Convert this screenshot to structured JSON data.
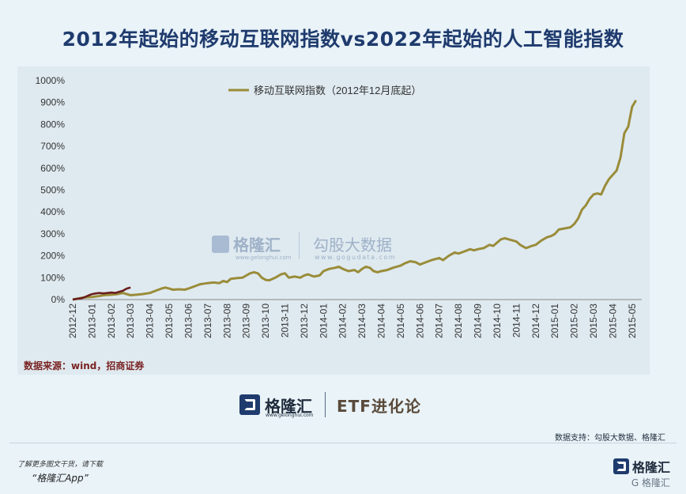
{
  "chart_data": {
    "type": "line",
    "title": "2012年起始的移动互联网指数vs2022年起始的人工智能指数",
    "legend_location": "top",
    "ylim": [
      0,
      1000
    ],
    "y_ticks": [
      "0%",
      "100%",
      "200%",
      "300%",
      "400%",
      "500%",
      "600%",
      "700%",
      "800%",
      "900%",
      "1000%"
    ],
    "x_ticks": [
      "2012-12",
      "2013-01",
      "2013-02",
      "2013-03",
      "2013-04",
      "2013-05",
      "2013-06",
      "2013-07",
      "2013-08",
      "2013-09",
      "2013-10",
      "2013-11",
      "2013-12",
      "2014-01",
      "2014-02",
      "2014-03",
      "2014-04",
      "2014-05",
      "2014-06",
      "2014-07",
      "2014-08",
      "2014-09",
      "2014-10",
      "2014-11",
      "2014-12",
      "2015-01",
      "2015-02",
      "2015-03",
      "2015-04",
      "2015-05"
    ],
    "grid": false,
    "series": [
      {
        "name": "移动互联网指数（2012年12月底起）",
        "color": "#9a8c3a",
        "points": [
          [
            0,
            0
          ],
          [
            0.3,
            5
          ],
          [
            0.6,
            10
          ],
          [
            1,
            12
          ],
          [
            1.3,
            15
          ],
          [
            1.6,
            20
          ],
          [
            2,
            22
          ],
          [
            2.3,
            25
          ],
          [
            2.6,
            30
          ],
          [
            3,
            20
          ],
          [
            3.3,
            22
          ],
          [
            3.6,
            25
          ],
          [
            4,
            30
          ],
          [
            4.3,
            40
          ],
          [
            4.6,
            50
          ],
          [
            4.8,
            55
          ],
          [
            5,
            50
          ],
          [
            5.2,
            45
          ],
          [
            5.5,
            47
          ],
          [
            5.8,
            45
          ],
          [
            6,
            50
          ],
          [
            6.3,
            60
          ],
          [
            6.6,
            70
          ],
          [
            7,
            75
          ],
          [
            7.3,
            78
          ],
          [
            7.6,
            75
          ],
          [
            7.8,
            85
          ],
          [
            8,
            80
          ],
          [
            8.2,
            95
          ],
          [
            8.5,
            98
          ],
          [
            8.8,
            100
          ],
          [
            9,
            110
          ],
          [
            9.2,
            120
          ],
          [
            9.4,
            125
          ],
          [
            9.6,
            120
          ],
          [
            9.8,
            100
          ],
          [
            10,
            90
          ],
          [
            10.2,
            88
          ],
          [
            10.5,
            100
          ],
          [
            10.8,
            115
          ],
          [
            11,
            120
          ],
          [
            11.2,
            100
          ],
          [
            11.5,
            105
          ],
          [
            11.8,
            100
          ],
          [
            12,
            110
          ],
          [
            12.2,
            115
          ],
          [
            12.5,
            105
          ],
          [
            12.8,
            110
          ],
          [
            13,
            130
          ],
          [
            13.3,
            140
          ],
          [
            13.6,
            145
          ],
          [
            13.8,
            150
          ],
          [
            14,
            140
          ],
          [
            14.3,
            130
          ],
          [
            14.6,
            135
          ],
          [
            14.8,
            125
          ],
          [
            15,
            140
          ],
          [
            15.2,
            150
          ],
          [
            15.4,
            145
          ],
          [
            15.6,
            130
          ],
          [
            15.8,
            125
          ],
          [
            16,
            130
          ],
          [
            16.3,
            135
          ],
          [
            16.6,
            145
          ],
          [
            16.8,
            150
          ],
          [
            17,
            155
          ],
          [
            17.2,
            165
          ],
          [
            17.5,
            175
          ],
          [
            17.8,
            170
          ],
          [
            18,
            160
          ],
          [
            18.3,
            170
          ],
          [
            18.6,
            180
          ],
          [
            18.8,
            185
          ],
          [
            19,
            190
          ],
          [
            19.2,
            180
          ],
          [
            19.5,
            200
          ],
          [
            19.8,
            215
          ],
          [
            20,
            210
          ],
          [
            20.3,
            220
          ],
          [
            20.6,
            230
          ],
          [
            20.8,
            225
          ],
          [
            21,
            230
          ],
          [
            21.3,
            235
          ],
          [
            21.6,
            250
          ],
          [
            21.8,
            245
          ],
          [
            22,
            260
          ],
          [
            22.2,
            275
          ],
          [
            22.4,
            280
          ],
          [
            22.6,
            275
          ],
          [
            22.8,
            270
          ],
          [
            23,
            265
          ],
          [
            23.2,
            250
          ],
          [
            23.5,
            235
          ],
          [
            23.8,
            245
          ],
          [
            24,
            250
          ],
          [
            24.3,
            270
          ],
          [
            24.6,
            285
          ],
          [
            24.8,
            290
          ],
          [
            25,
            300
          ],
          [
            25.2,
            320
          ],
          [
            25.5,
            325
          ],
          [
            25.8,
            330
          ],
          [
            26,
            345
          ],
          [
            26.2,
            370
          ],
          [
            26.4,
            410
          ],
          [
            26.6,
            430
          ],
          [
            26.8,
            460
          ],
          [
            27,
            480
          ],
          [
            27.2,
            485
          ],
          [
            27.4,
            480
          ],
          [
            27.6,
            520
          ],
          [
            27.8,
            550
          ],
          [
            28,
            570
          ],
          [
            28.2,
            590
          ],
          [
            28.4,
            650
          ],
          [
            28.6,
            760
          ],
          [
            28.8,
            790
          ],
          [
            29,
            880
          ],
          [
            29.2,
            910
          ]
        ]
      },
      {
        "name": "",
        "color": "#6a1f1f",
        "points": [
          [
            0,
            0
          ],
          [
            0.2,
            3
          ],
          [
            0.4,
            5
          ],
          [
            0.6,
            10
          ],
          [
            0.8,
            18
          ],
          [
            1,
            25
          ],
          [
            1.2,
            28
          ],
          [
            1.4,
            30
          ],
          [
            1.6,
            28
          ],
          [
            1.8,
            30
          ],
          [
            2,
            32
          ],
          [
            2.2,
            30
          ],
          [
            2.4,
            35
          ],
          [
            2.6,
            40
          ],
          [
            2.8,
            50
          ],
          [
            3,
            55
          ]
        ]
      }
    ]
  },
  "source_note": "数据来源：wind，招商证券",
  "watermark": {
    "brand": "格隆汇",
    "brand_url": "www.gelonghui.com",
    "data_brand": "勾股大数据",
    "data_url": "www.gogudata.com"
  },
  "brand_block": {
    "name": "格隆汇",
    "sub": "www.gelonghui.com",
    "column": "ETF进化论"
  },
  "support_text": "数据支持：勾股大数据、格隆汇",
  "footer": {
    "line1": "了解更多图文干货，请下载",
    "line2": "“格隆汇App”",
    "logo_name": "格隆汇",
    "logo_sub": "G 格隆汇"
  }
}
